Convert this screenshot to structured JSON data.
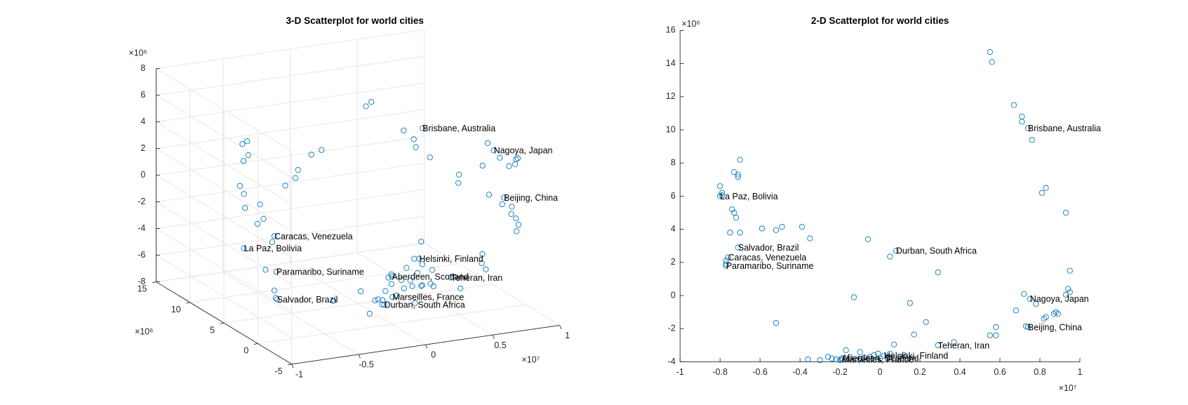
{
  "chart_data": [
    {
      "type": "scatter3d",
      "title": "3-D Scatterplot for world cities",
      "x_factor": "×10⁷",
      "y_factor": "×10⁶",
      "z_factor": "×10⁶",
      "xlim": [
        -1,
        1
      ],
      "ylim": [
        -5,
        15
      ],
      "zlim": [
        -8,
        8
      ],
      "xticks": [
        -1,
        -0.5,
        0,
        0.5,
        1
      ],
      "yticks": [
        -5,
        0,
        5,
        10,
        15
      ],
      "zticks": [
        -8,
        -6,
        -4,
        -2,
        0,
        2,
        4,
        6,
        8
      ],
      "grid": true,
      "color": "#0072bd",
      "x": [
        0.55,
        0.56,
        0.67,
        0.71,
        0.71,
        0.76,
        0.83,
        0.81,
        0.93,
        0.95,
        0.94,
        0.95,
        0.93,
        0.72,
        0.78,
        0.68,
        0.83,
        0.82,
        0.87,
        0.89,
        0.88,
        0.73,
        0.58,
        0.55,
        0.58,
        0.37,
        0.29,
        0.23,
        0.17,
        0.15,
        0.05,
        -0.06,
        -0.13,
        -0.52,
        -0.7,
        -0.71,
        -0.71,
        -0.73,
        -0.8,
        -0.79,
        -0.79,
        -0.74,
        -0.73,
        -0.72,
        -0.7,
        -0.75,
        -0.59,
        -0.52,
        -0.49,
        -0.39,
        -0.35,
        -0.77,
        -0.77,
        -0.17,
        -0.1,
        -0.01,
        0.05,
        0.07,
        0.12,
        0.04,
        -0.05,
        -0.1,
        -0.15,
        -0.22,
        -0.24,
        -0.26,
        -0.3,
        -0.36,
        -0.2,
        -0.08,
        0,
        -0.03
      ],
      "y": [
        14.7,
        14.1,
        11.5,
        10.8,
        10.5,
        9.4,
        6.5,
        6.2,
        5.0,
        1.5,
        0.4,
        0.2,
        0.05,
        0.1,
        -0.5,
        -0.9,
        -1.3,
        -1.4,
        -1.1,
        -1.1,
        -1.0,
        -1.85,
        -1.9,
        -2.4,
        -2.4,
        -2.8,
        1.4,
        -1.6,
        -2.35,
        -0.45,
        2.35,
        3.4,
        -0.1,
        -1.65,
        8.2,
        7.3,
        7.15,
        7.45,
        6.6,
        6.2,
        6.05,
        5.2,
        5.0,
        4.7,
        3.8,
        3.8,
        4.05,
        3.95,
        4.15,
        4.15,
        3.45,
        2.1,
        1.9,
        -3.3,
        -3.4,
        -3.5,
        -3.5,
        -2.95,
        -3.6,
        -3.7,
        -3.7,
        -3.8,
        -3.7,
        -3.85,
        -3.8,
        -3.7,
        -3.9,
        -3.85,
        -3.9,
        -3.75,
        -3.8,
        -3.6
      ],
      "z": [
        3,
        3.5,
        2,
        1.5,
        1,
        0.5,
        0,
        -0.5,
        1,
        2,
        2.5,
        3,
        3,
        4.5,
        3.5,
        1,
        0,
        -0.5,
        -1,
        -1.5,
        -2,
        0.5,
        -3,
        -3.5,
        -4,
        -5,
        -6,
        -5,
        -4.5,
        -6.5,
        -7,
        -6.5,
        -6,
        -5,
        4,
        4.5,
        3.5,
        3,
        1.5,
        1,
        0,
        -1,
        0.5,
        -0.5,
        -2,
        -4,
        2,
        2.5,
        3,
        4,
        4.5,
        -5,
        -5.5,
        -3,
        -3.5,
        -2,
        -2.5,
        -1,
        -3,
        -4,
        -3.5,
        -4,
        -4.5,
        -3,
        -4,
        -5,
        -4.5,
        -5.5,
        -3.5,
        -2.5,
        -3,
        -4
      ],
      "annotations": [
        {
          "text": "Brisbane, Australia",
          "x": 0.74,
          "y": 10.1,
          "z": 2.5
        },
        {
          "text": "La Paz, Bolivia",
          "x": -0.8,
          "y": 6.0,
          "z": -3
        },
        {
          "text": "Salvador, Brazil",
          "x": -0.71,
          "y": 2.9,
          "z": -6
        },
        {
          "text": "Caracas, Venezuela",
          "x": -0.76,
          "y": 2.3,
          "z": -1
        },
        {
          "text": "Paramaribo, Suriname",
          "x": -0.77,
          "y": 1.8,
          "z": -3.5
        },
        {
          "text": "Durban, South Africa",
          "x": 0.08,
          "y": 2.7,
          "z": -7.5
        },
        {
          "text": "Nagoya, Japan",
          "x": 0.75,
          "y": -0.2,
          "z": 4
        },
        {
          "text": "Beijing, China",
          "x": 0.74,
          "y": -1.9,
          "z": 1
        },
        {
          "text": "Teheran, Iran",
          "x": 0.29,
          "y": -3.0,
          "z": -4
        },
        {
          "text": "Helsinki, Finland",
          "x": 0.02,
          "y": -3.63,
          "z": -2
        },
        {
          "text": "Aberdeen, Scotland",
          "x": -0.19,
          "y": -3.77,
          "z": -3
        },
        {
          "text": "Marseilles, France",
          "x": -0.19,
          "y": -3.86,
          "z": -4.5
        }
      ]
    },
    {
      "type": "scatter",
      "title": "2-D Scatterplot for world cities",
      "x_factor": "×10⁷",
      "y_factor": "×10⁶",
      "xlim": [
        -1,
        1
      ],
      "ylim": [
        -4,
        16
      ],
      "xticks": [
        -1,
        -0.8,
        -0.6,
        -0.4,
        -0.2,
        0,
        0.2,
        0.4,
        0.6,
        0.8,
        1
      ],
      "yticks": [
        -4,
        -2,
        0,
        2,
        4,
        6,
        8,
        10,
        12,
        14,
        16
      ],
      "color": "#0072bd",
      "x": [
        0.55,
        0.56,
        0.67,
        0.71,
        0.71,
        0.76,
        0.83,
        0.81,
        0.93,
        0.95,
        0.94,
        0.95,
        0.93,
        0.72,
        0.78,
        0.68,
        0.83,
        0.82,
        0.87,
        0.89,
        0.88,
        0.73,
        0.58,
        0.55,
        0.58,
        0.37,
        0.29,
        0.23,
        0.17,
        0.15,
        0.05,
        -0.06,
        -0.13,
        -0.52,
        -0.7,
        -0.71,
        -0.71,
        -0.73,
        -0.8,
        -0.79,
        -0.79,
        -0.74,
        -0.73,
        -0.72,
        -0.7,
        -0.75,
        -0.59,
        -0.52,
        -0.49,
        -0.39,
        -0.35,
        -0.77,
        -0.77,
        -0.17,
        -0.1,
        -0.01,
        0.05,
        0.07,
        0.12,
        0.04,
        -0.05,
        -0.1,
        -0.15,
        -0.22,
        -0.24,
        -0.26,
        -0.3,
        -0.36,
        -0.2,
        -0.08,
        0,
        -0.03
      ],
      "y": [
        14.7,
        14.1,
        11.5,
        10.8,
        10.5,
        9.4,
        6.5,
        6.2,
        5.0,
        1.5,
        0.4,
        0.2,
        0.05,
        0.1,
        -0.5,
        -0.9,
        -1.3,
        -1.4,
        -1.1,
        -1.1,
        -1.0,
        -1.85,
        -1.9,
        -2.4,
        -2.4,
        -2.8,
        1.4,
        -1.6,
        -2.35,
        -0.45,
        2.35,
        3.4,
        -0.1,
        -1.65,
        8.2,
        7.3,
        7.15,
        7.45,
        6.6,
        6.2,
        6.05,
        5.2,
        5.0,
        4.7,
        3.8,
        3.8,
        4.05,
        3.95,
        4.15,
        4.15,
        3.45,
        2.1,
        1.9,
        -3.3,
        -3.4,
        -3.5,
        -3.5,
        -2.95,
        -3.6,
        -3.7,
        -3.7,
        -3.8,
        -3.7,
        -3.85,
        -3.8,
        -3.7,
        -3.9,
        -3.85,
        -3.9,
        -3.75,
        -3.8,
        -3.6
      ],
      "annotations": [
        {
          "text": "Brisbane, Australia",
          "x": 0.74,
          "y": 10.1
        },
        {
          "text": "La Paz, Bolivia",
          "x": -0.8,
          "y": 6.0
        },
        {
          "text": "Salvador, Brazil",
          "x": -0.71,
          "y": 2.9
        },
        {
          "text": "Caracas, Venezuela",
          "x": -0.76,
          "y": 2.3
        },
        {
          "text": "Paramaribo, Suriname",
          "x": -0.77,
          "y": 1.8
        },
        {
          "text": "Durban, South Africa",
          "x": 0.08,
          "y": 2.7
        },
        {
          "text": "Nagoya, Japan",
          "x": 0.75,
          "y": -0.2
        },
        {
          "text": "Beijing, China",
          "x": 0.74,
          "y": -1.9
        },
        {
          "text": "Teheran, Iran",
          "x": 0.29,
          "y": -3.0
        },
        {
          "text": "Helsinki, Finland",
          "x": 0.02,
          "y": -3.63
        },
        {
          "text": "Aberdeen, Scotland",
          "x": -0.19,
          "y": -3.77
        },
        {
          "text": "Marseilles, France",
          "x": -0.19,
          "y": -3.86
        }
      ]
    }
  ]
}
